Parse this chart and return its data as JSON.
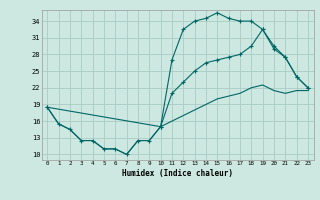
{
  "xlabel": "Humidex (Indice chaleur)",
  "background_color": "#cce8e0",
  "grid_color": "#aaccC4",
  "line_color": "#006666",
  "ylim": [
    9,
    36
  ],
  "xlim": [
    -0.5,
    23.5
  ],
  "yticks": [
    10,
    13,
    16,
    19,
    22,
    25,
    28,
    31,
    34
  ],
  "xticks": [
    0,
    1,
    2,
    3,
    4,
    5,
    6,
    7,
    8,
    9,
    10,
    11,
    12,
    13,
    14,
    15,
    16,
    17,
    18,
    19,
    20,
    21,
    22,
    23
  ],
  "line1_x": [
    0,
    1,
    2,
    3,
    4,
    5,
    6,
    7,
    8,
    9,
    10,
    11,
    12,
    13,
    14,
    15,
    16,
    17,
    18,
    19,
    20,
    21,
    22,
    23
  ],
  "line1_y": [
    18.5,
    15.5,
    14.5,
    12.5,
    12.5,
    11.0,
    11.0,
    10.0,
    12.5,
    12.5,
    15.0,
    27.0,
    32.5,
    34.0,
    34.5,
    35.5,
    34.5,
    34.0,
    34.0,
    32.5,
    29.0,
    27.5,
    24.0,
    22.0
  ],
  "line2_x": [
    0,
    10,
    11,
    12,
    13,
    14,
    15,
    16,
    17,
    18,
    19,
    20,
    21,
    22,
    23
  ],
  "line2_y": [
    18.5,
    15.0,
    21.0,
    23.0,
    25.0,
    26.5,
    27.0,
    27.5,
    28.0,
    29.5,
    32.5,
    29.5,
    27.5,
    24.0,
    22.0
  ],
  "line3_x": [
    0,
    1,
    2,
    3,
    4,
    5,
    6,
    7,
    8,
    9,
    10,
    11,
    12,
    13,
    14,
    15,
    16,
    17,
    18,
    19,
    20,
    21,
    22,
    23
  ],
  "line3_y": [
    18.5,
    15.5,
    14.5,
    12.5,
    12.5,
    11.0,
    11.0,
    10.0,
    12.5,
    12.5,
    15.0,
    16.0,
    17.0,
    18.0,
    19.0,
    20.0,
    20.5,
    21.0,
    22.0,
    22.5,
    21.5,
    21.0,
    21.5,
    21.5
  ]
}
